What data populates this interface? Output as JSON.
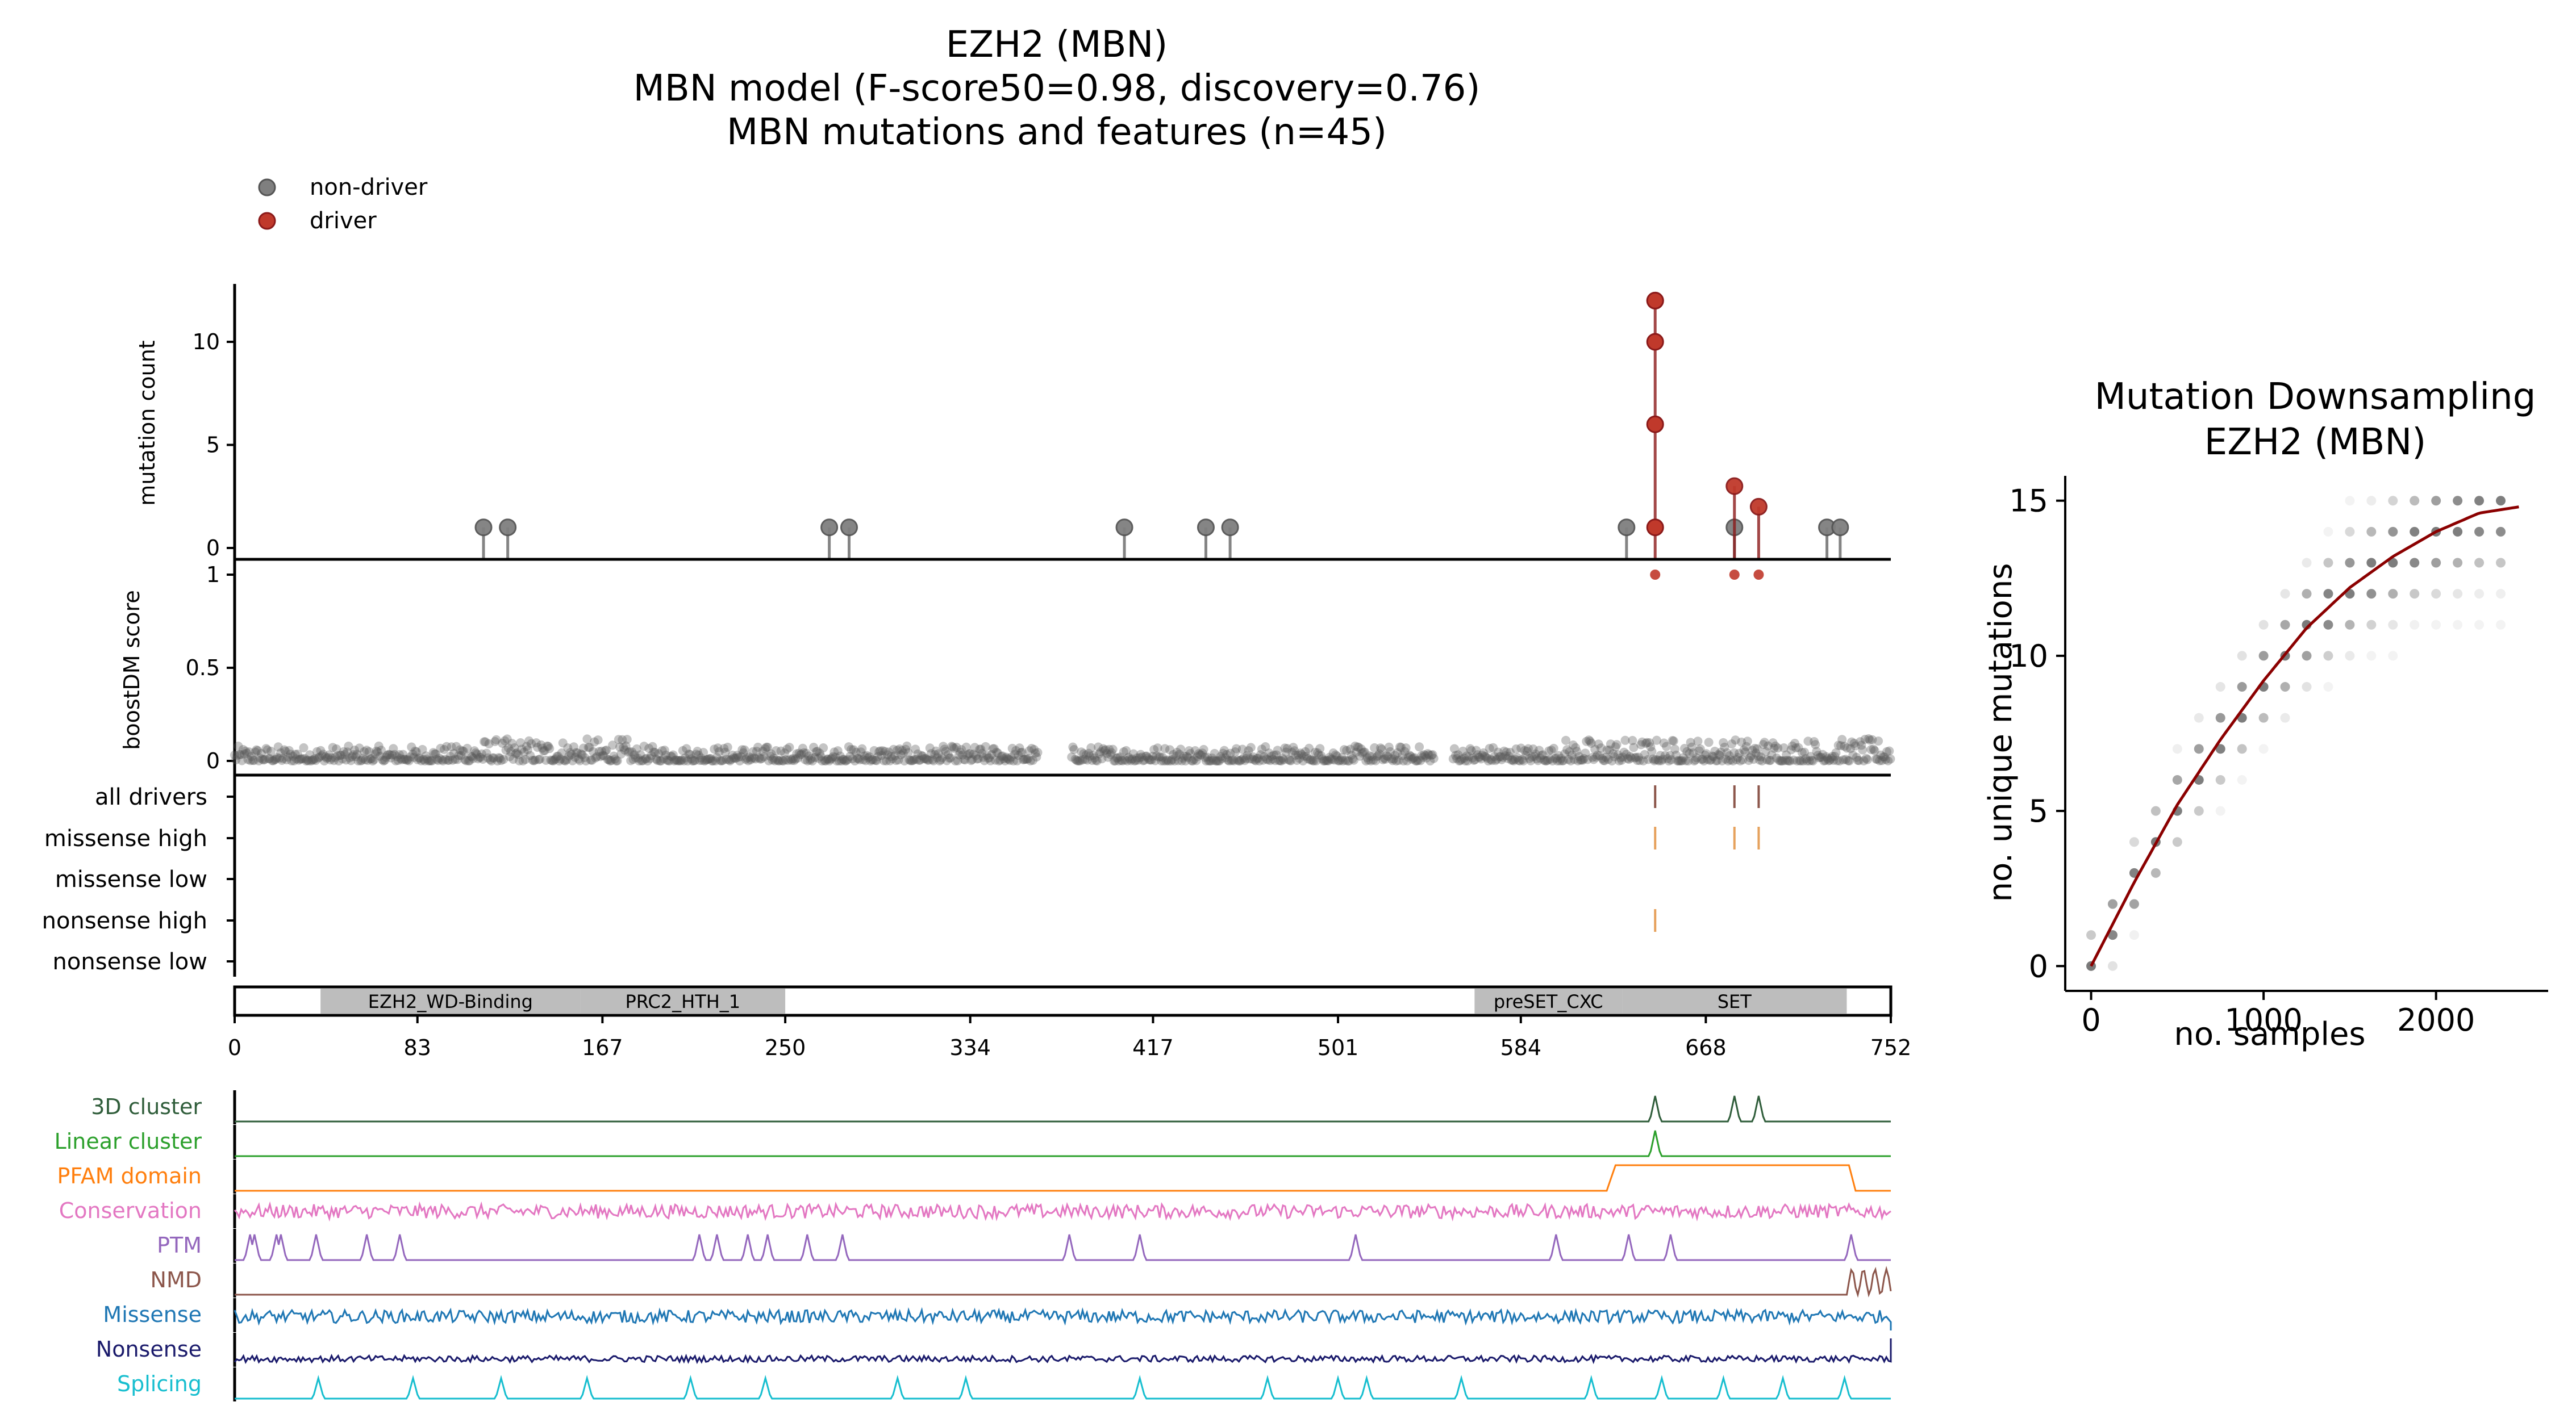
{
  "figure": {
    "title_lines": [
      "EZH2 (MBN)",
      "MBN model (F-score50=0.98, discovery=0.76)",
      "MBN mutations and features (n=45)"
    ],
    "legend": [
      {
        "label": "non-driver",
        "color": "#7f7f7f"
      },
      {
        "label": "driver",
        "color": "#c0392b"
      }
    ]
  },
  "chart_data": [
    {
      "type": "scatter",
      "name": "lollipop",
      "ylabel": "mutation count",
      "xlim": [
        0,
        752
      ],
      "yticks": [
        0,
        5,
        10
      ],
      "mutations": [
        {
          "x": 113,
          "count": 1,
          "driver": false
        },
        {
          "x": 124,
          "count": 1,
          "driver": false
        },
        {
          "x": 270,
          "count": 1,
          "driver": false
        },
        {
          "x": 279,
          "count": 1,
          "driver": false
        },
        {
          "x": 404,
          "count": 1,
          "driver": false
        },
        {
          "x": 441,
          "count": 1,
          "driver": false
        },
        {
          "x": 452,
          "count": 1,
          "driver": false
        },
        {
          "x": 632,
          "count": 1,
          "driver": false
        },
        {
          "x": 645,
          "count": 12,
          "driver": true
        },
        {
          "x": 681,
          "count": 1,
          "driver": false
        },
        {
          "x": 681,
          "count": 3,
          "driver": true
        },
        {
          "x": 692,
          "count": 2,
          "driver": true
        },
        {
          "x": 723,
          "count": 1,
          "driver": false
        },
        {
          "x": 729,
          "count": 1,
          "driver": false
        }
      ],
      "stacked_driver_dots_at_645": [
        1,
        6,
        10,
        12
      ]
    },
    {
      "type": "scatter",
      "name": "boostdm",
      "ylabel": "boostDM score",
      "yticks": [
        0,
        0.5,
        1
      ],
      "ytick_labels": [
        "0",
        "0.5",
        "1"
      ],
      "high_scores": [
        {
          "x": 645,
          "score": 1
        },
        {
          "x": 681,
          "score": 1
        },
        {
          "x": 692,
          "score": 1
        }
      ],
      "background": "dense grey points between 0 and 0.13 across positions 0–752"
    },
    {
      "type": "table",
      "name": "driver-tracks",
      "rows": [
        "all drivers",
        "missense high",
        "missense low",
        "nonsense high",
        "nonsense low"
      ],
      "ticks": [
        {
          "row": "all drivers",
          "positions": [
            645,
            681,
            692
          ],
          "color": "#8c564b"
        },
        {
          "row": "missense high",
          "positions": [
            645,
            681,
            692
          ],
          "color": "#e6a15c"
        },
        {
          "row": "nonsense high",
          "positions": [
            645
          ],
          "color": "#e6a15c"
        }
      ]
    },
    {
      "type": "bar",
      "name": "domains",
      "domains": [
        {
          "label": "EZH2_WD-Binding",
          "start": 39,
          "end": 157
        },
        {
          "label": "PRC2_HTH_1",
          "start": 157,
          "end": 250
        },
        {
          "label": "preSET_CXC",
          "start": 563,
          "end": 630
        },
        {
          "label": "SET",
          "start": 630,
          "end": 732
        }
      ],
      "xticks": [
        0,
        83,
        167,
        250,
        334,
        417,
        501,
        584,
        668,
        752
      ]
    },
    {
      "type": "line",
      "name": "features",
      "tracks": [
        {
          "label": "3D cluster",
          "color": "#2f5d3a",
          "peaks": [
            645,
            681,
            692
          ]
        },
        {
          "label": "Linear cluster",
          "color": "#2ca02c",
          "peaks": [
            645
          ]
        },
        {
          "label": "PFAM domain",
          "color": "#ff7f0e",
          "range": [
            627,
            733
          ]
        },
        {
          "label": "Conservation",
          "color": "#e377c2"
        },
        {
          "label": "PTM",
          "color": "#9467bd",
          "peaks": [
            7,
            9,
            19,
            21,
            37,
            60,
            75,
            211,
            219,
            233,
            242,
            260,
            276,
            379,
            411,
            509,
            600,
            633,
            652,
            734
          ]
        },
        {
          "label": "NMD",
          "color": "#8c564b",
          "range": [
            733,
            752
          ]
        },
        {
          "label": "Missense",
          "color": "#1f77b4"
        },
        {
          "label": "Nonsense",
          "color": "#1a1a6b"
        },
        {
          "label": "Splicing",
          "color": "#17becf",
          "peaks": [
            38,
            81,
            121,
            160,
            207,
            241,
            301,
            332,
            411,
            469,
            501,
            514,
            557,
            616,
            648,
            676,
            703,
            731
          ]
        }
      ]
    },
    {
      "type": "scatter",
      "name": "downsampling",
      "title_lines": [
        "Mutation Downsampling",
        "EZH2 (MBN)"
      ],
      "xlabel": "no. samples",
      "ylabel": "no. unique mutations",
      "xlim": [
        -150,
        2650
      ],
      "ylim": [
        -0.8,
        15.8
      ],
      "xticks": [
        0,
        1000,
        2000
      ],
      "yticks": [
        0,
        5,
        10,
        15
      ],
      "curve": {
        "x": [
          0,
          250,
          500,
          750,
          1000,
          1250,
          1500,
          1750,
          2000,
          2250,
          2480
        ],
        "y": [
          0,
          2.7,
          5.2,
          7.3,
          9.2,
          10.9,
          12.2,
          13.2,
          14.0,
          14.6,
          14.8
        ],
        "color": "#8b0000"
      },
      "sample_step": 125,
      "max_samples": 2375
    }
  ]
}
